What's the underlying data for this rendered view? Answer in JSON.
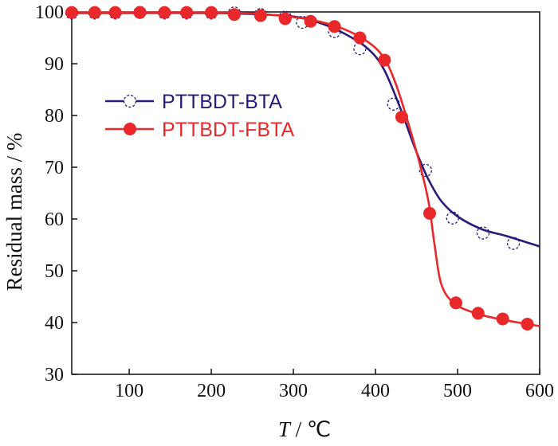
{
  "chart_data": {
    "type": "line",
    "title": "",
    "xlabel_var": "T",
    "xlabel_sep": " / ",
    "xlabel_unit": "℃",
    "ylabel": "Residual mass / %",
    "xlim": [
      30,
      600
    ],
    "ylim": [
      30,
      100
    ],
    "x_ticks": [
      100,
      200,
      300,
      400,
      500,
      600
    ],
    "y_ticks": [
      30,
      40,
      50,
      60,
      70,
      80,
      90,
      100
    ],
    "grid": false,
    "legend_position": "center-left",
    "series": [
      {
        "name": "PTTBDT-BTA",
        "color": "#2b1a7a",
        "marker": "open-dashed-circle",
        "curve": [
          [
            30,
            99.8
          ],
          [
            100,
            99.8
          ],
          [
            200,
            99.8
          ],
          [
            250,
            99.6
          ],
          [
            300,
            99.1
          ],
          [
            330,
            98.0
          ],
          [
            360,
            96.0
          ],
          [
            390,
            93.0
          ],
          [
            410,
            89.0
          ],
          [
            430,
            81.5
          ],
          [
            445,
            75.0
          ],
          [
            455,
            71.0
          ],
          [
            465,
            67.5
          ],
          [
            480,
            63.5
          ],
          [
            500,
            60.5
          ],
          [
            530,
            58.0
          ],
          [
            560,
            56.7
          ],
          [
            600,
            54.7
          ]
        ],
        "markers": [
          [
            30,
            99.8
          ],
          [
            58,
            99.8
          ],
          [
            83,
            99.8
          ],
          [
            113,
            99.9
          ],
          [
            143,
            99.8
          ],
          [
            170,
            99.8
          ],
          [
            200,
            99.8
          ],
          [
            228,
            99.8
          ],
          [
            260,
            99.5
          ],
          [
            290,
            99.0
          ],
          [
            311,
            98.0
          ],
          [
            350,
            96.2
          ],
          [
            381,
            92.9
          ],
          [
            422,
            82.2
          ],
          [
            461,
            69.4
          ],
          [
            494,
            60.2
          ],
          [
            531,
            57.3
          ],
          [
            568,
            55.3
          ]
        ]
      },
      {
        "name": "PTTBDT-FBTA",
        "color": "#e8282b",
        "marker": "filled-circle",
        "curve": [
          [
            30,
            99.9
          ],
          [
            100,
            99.9
          ],
          [
            200,
            99.9
          ],
          [
            250,
            99.7
          ],
          [
            300,
            99.0
          ],
          [
            330,
            98.2
          ],
          [
            360,
            96.8
          ],
          [
            390,
            94.3
          ],
          [
            410,
            91.2
          ],
          [
            425,
            86.0
          ],
          [
            440,
            78.5
          ],
          [
            455,
            70.0
          ],
          [
            465,
            63.0
          ],
          [
            472,
            55.0
          ],
          [
            480,
            47.5
          ],
          [
            495,
            43.8
          ],
          [
            520,
            41.9
          ],
          [
            550,
            40.7
          ],
          [
            600,
            39.3
          ]
        ],
        "markers": [
          [
            30,
            99.9
          ],
          [
            58,
            99.9
          ],
          [
            83,
            99.9
          ],
          [
            113,
            99.9
          ],
          [
            143,
            99.9
          ],
          [
            170,
            99.9
          ],
          [
            200,
            99.9
          ],
          [
            228,
            99.5
          ],
          [
            260,
            99.3
          ],
          [
            290,
            98.7
          ],
          [
            321,
            98.2
          ],
          [
            350,
            97.2
          ],
          [
            381,
            95.0
          ],
          [
            411,
            90.7
          ],
          [
            432,
            79.7
          ],
          [
            466,
            61.1
          ],
          [
            498,
            43.8
          ],
          [
            525,
            41.8
          ],
          [
            555,
            40.7
          ],
          [
            585,
            39.7
          ]
        ]
      }
    ]
  }
}
